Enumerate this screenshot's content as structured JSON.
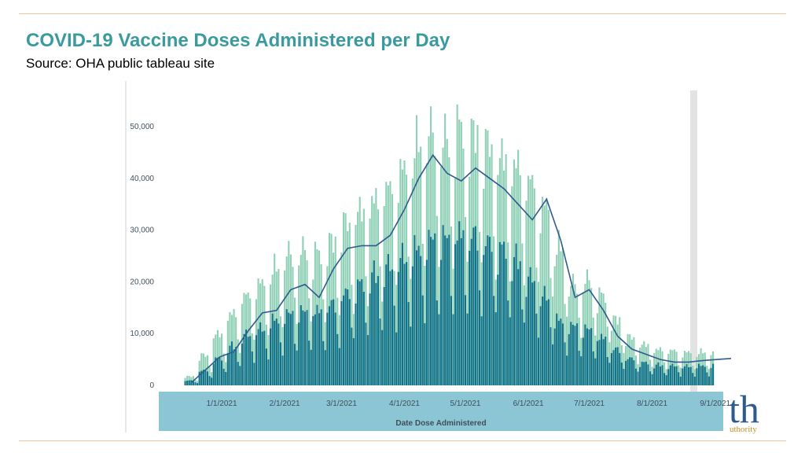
{
  "page": {
    "title": "COVID-19 Vaccine Doses Administered per Day",
    "subtitle": "Source: OHA public tableau site"
  },
  "theme": {
    "title_color": "#3a9a9e",
    "rule_color": "#e8c79a",
    "dark_bar_color": "#0f7287",
    "light_bar_color": "#8fd0b6",
    "line_color": "#2f5b8c",
    "axis_band_color": "#8cc5d3",
    "axis_text_color": "#3f4f5a",
    "highlight_color": "#e3e3e3"
  },
  "brand": {
    "mark": "th",
    "sub": "uthority"
  },
  "chart_data": {
    "type": "bar",
    "title": "",
    "xlabel": "Date Dose Administered",
    "ylabel": "",
    "ylim": [
      0,
      57000
    ],
    "x_domain": [
      "2020-12-01",
      "2021-09-05"
    ],
    "grid": false,
    "ytick_labels": [
      "0",
      "10,000",
      "20,000",
      "30,000",
      "40,000",
      "50,000"
    ],
    "ytick_values": [
      0,
      10000,
      20000,
      30000,
      40000,
      50000
    ],
    "xtick_labels": [
      "1/1/2021",
      "2/1/2021",
      "3/1/2021",
      "4/1/2021",
      "5/1/2021",
      "6/1/2021",
      "7/1/2021",
      "8/1/2021",
      "9/1/2021"
    ],
    "xtick_dates": [
      "2021-01-01",
      "2021-02-01",
      "2021-03-01",
      "2021-04-01",
      "2021-05-01",
      "2021-06-01",
      "2021-07-01",
      "2021-08-01",
      "2021-09-01"
    ],
    "date_start": "2020-12-14",
    "series": [
      {
        "kind": "bar_total",
        "note": "lighter bars, daily total doses (weekly-averaged level, weekday peaks, weekend dips)",
        "weekly_totals": [
          1500,
          5000,
          8500,
          12000,
          15000,
          17000,
          19500,
          22000,
          22500,
          22000,
          24000,
          27000,
          29000,
          31000,
          33000,
          36000,
          40000,
          42500,
          41000,
          43000,
          42000,
          40000,
          38000,
          37000,
          34000,
          30000,
          23000,
          17000,
          17500,
          15000,
          11000,
          8000,
          6800,
          6000,
          5800,
          5500,
          5500,
          5800,
          6000,
          6200,
          6500,
          6800
        ]
      },
      {
        "kind": "bar_dark",
        "note": "darker overlay bars, share of daily doses",
        "weekly_values": [
          800,
          2500,
          4500,
          6500,
          8500,
          9500,
          11000,
          12000,
          12500,
          12500,
          13500,
          15500,
          17000,
          18500,
          20000,
          21500,
          23000,
          24500,
          25000,
          25500,
          25000,
          24000,
          23000,
          21000,
          18000,
          15000,
          11000,
          10000,
          9500,
          8000,
          6000,
          4500,
          3800,
          3400,
          3300,
          3200,
          3300,
          3400,
          3500,
          3600,
          3700,
          3900
        ]
      },
      {
        "kind": "line",
        "name": "",
        "note": "7-day moving average",
        "weekly_values": [
          500,
          3000,
          5500,
          6500,
          10500,
          14000,
          14500,
          18500,
          19500,
          17000,
          22500,
          26500,
          27000,
          27000,
          29000,
          34000,
          40000,
          44500,
          41000,
          39500,
          42000,
          40000,
          38000,
          35000,
          32000,
          36000,
          28000,
          17000,
          18500,
          14500,
          9500,
          7000,
          6000,
          5000,
          4500,
          4500,
          4800,
          5000,
          5200,
          5500,
          6000,
          6500
        ]
      }
    ]
  }
}
